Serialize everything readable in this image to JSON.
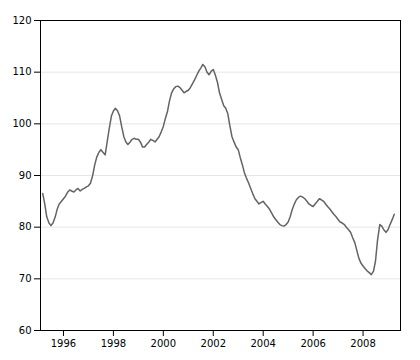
{
  "chart_data": {
    "type": "line",
    "color": "#646464",
    "xlim": [
      1995.08,
      2009.5
    ],
    "ylim": [
      60,
      120
    ],
    "xticks": [
      1996,
      1998,
      2000,
      2002,
      2004,
      2006,
      2008
    ],
    "yticks": [
      60,
      70,
      80,
      90,
      100,
      110,
      120
    ],
    "grid": "y",
    "x": [
      1995.17,
      1995.25,
      1995.33,
      1995.42,
      1995.5,
      1995.58,
      1995.67,
      1995.75,
      1995.83,
      1995.92,
      1996.0,
      1996.08,
      1996.17,
      1996.25,
      1996.33,
      1996.42,
      1996.5,
      1996.58,
      1996.67,
      1996.75,
      1996.83,
      1996.92,
      1997.0,
      1997.08,
      1997.17,
      1997.25,
      1997.33,
      1997.42,
      1997.5,
      1997.58,
      1997.67,
      1997.75,
      1997.83,
      1997.92,
      1998.0,
      1998.08,
      1998.17,
      1998.25,
      1998.33,
      1998.42,
      1998.5,
      1998.58,
      1998.67,
      1998.75,
      1998.83,
      1998.92,
      1999.0,
      1999.08,
      1999.17,
      1999.25,
      1999.33,
      1999.42,
      1999.5,
      1999.58,
      1999.67,
      1999.75,
      1999.83,
      1999.92,
      2000.0,
      2000.08,
      2000.17,
      2000.25,
      2000.33,
      2000.42,
      2000.5,
      2000.58,
      2000.67,
      2000.75,
      2000.83,
      2000.92,
      2001.0,
      2001.08,
      2001.17,
      2001.25,
      2001.33,
      2001.42,
      2001.5,
      2001.58,
      2001.67,
      2001.75,
      2001.83,
      2001.92,
      2002.0,
      2002.08,
      2002.17,
      2002.25,
      2002.33,
      2002.42,
      2002.5,
      2002.58,
      2002.67,
      2002.75,
      2002.83,
      2002.92,
      2003.0,
      2003.08,
      2003.17,
      2003.25,
      2003.33,
      2003.42,
      2003.5,
      2003.58,
      2003.67,
      2003.75,
      2003.83,
      2003.92,
      2004.0,
      2004.08,
      2004.17,
      2004.25,
      2004.33,
      2004.42,
      2004.5,
      2004.58,
      2004.67,
      2004.75,
      2004.83,
      2004.92,
      2005.0,
      2005.08,
      2005.17,
      2005.25,
      2005.33,
      2005.42,
      2005.5,
      2005.58,
      2005.67,
      2005.75,
      2005.83,
      2005.92,
      2006.0,
      2006.08,
      2006.17,
      2006.25,
      2006.33,
      2006.42,
      2006.5,
      2006.58,
      2006.67,
      2006.75,
      2006.83,
      2006.92,
      2007.0,
      2007.08,
      2007.17,
      2007.25,
      2007.33,
      2007.42,
      2007.5,
      2007.58,
      2007.67,
      2007.75,
      2007.83,
      2007.92,
      2008.0,
      2008.08,
      2008.17,
      2008.25,
      2008.33,
      2008.42,
      2008.5,
      2008.58,
      2008.67,
      2008.75,
      2008.83,
      2008.92,
      2009.0,
      2009.08,
      2009.17,
      2009.25
    ],
    "values": [
      86.5,
      84.5,
      82.0,
      80.8,
      80.3,
      80.8,
      82.0,
      83.5,
      84.5,
      85.0,
      85.5,
      86.0,
      86.8,
      87.2,
      87.0,
      86.8,
      87.2,
      87.5,
      87.0,
      87.3,
      87.5,
      87.8,
      88.0,
      88.5,
      90.0,
      92.0,
      93.5,
      94.5,
      95.0,
      94.5,
      94.0,
      96.5,
      99.0,
      101.5,
      102.5,
      103.0,
      102.5,
      101.5,
      99.5,
      97.5,
      96.5,
      96.0,
      96.5,
      97.0,
      97.2,
      97.0,
      97.0,
      96.5,
      95.5,
      95.5,
      96.0,
      96.5,
      97.0,
      96.8,
      96.5,
      97.0,
      97.5,
      98.5,
      99.5,
      101.0,
      102.5,
      104.5,
      106.0,
      106.8,
      107.2,
      107.3,
      107.0,
      106.5,
      106.0,
      106.3,
      106.5,
      107.0,
      107.8,
      108.5,
      109.3,
      110.2,
      110.8,
      111.5,
      111.0,
      110.0,
      109.5,
      110.2,
      110.5,
      109.5,
      108.0,
      106.0,
      104.8,
      103.5,
      103.0,
      102.0,
      99.5,
      97.5,
      96.5,
      95.5,
      95.0,
      93.5,
      92.0,
      90.5,
      89.5,
      88.5,
      87.5,
      86.5,
      85.5,
      85.0,
      84.5,
      84.8,
      85.0,
      84.5,
      84.0,
      83.5,
      82.8,
      82.0,
      81.5,
      81.0,
      80.5,
      80.3,
      80.2,
      80.5,
      81.0,
      82.0,
      83.5,
      84.5,
      85.3,
      85.8,
      86.0,
      85.8,
      85.5,
      85.0,
      84.5,
      84.2,
      84.0,
      84.5,
      85.0,
      85.5,
      85.3,
      85.0,
      84.5,
      84.0,
      83.5,
      83.0,
      82.5,
      82.0,
      81.5,
      81.0,
      80.8,
      80.5,
      80.0,
      79.5,
      79.0,
      78.0,
      77.0,
      75.5,
      74.0,
      73.0,
      72.5,
      72.0,
      71.5,
      71.2,
      70.8,
      71.5,
      73.5,
      77.5,
      80.5,
      80.2,
      79.5,
      79.0,
      79.5,
      80.5,
      81.5,
      82.5
    ]
  }
}
